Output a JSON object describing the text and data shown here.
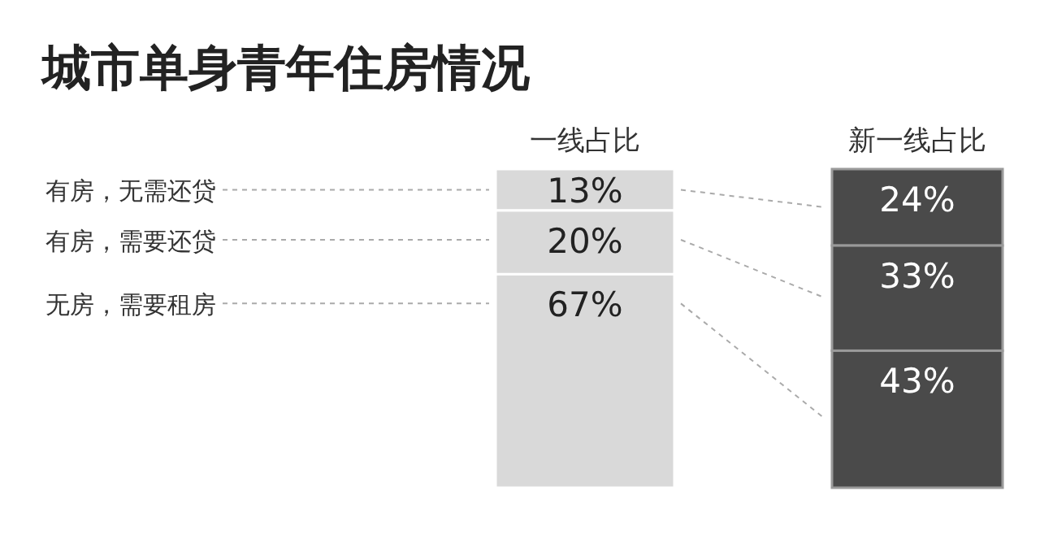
{
  "chart_data": {
    "type": "bar",
    "stacked": true,
    "title": "城市单身青年住房情况",
    "categories": [
      "一线占比",
      "新一线占比"
    ],
    "series": [
      {
        "name": "有房，无需还贷",
        "colors": [
          "#d9d9d9",
          "#4a4a4a"
        ],
        "values": [
          13,
          24
        ],
        "value_labels": [
          "13%",
          "24%"
        ]
      },
      {
        "name": "有房，需要还贷",
        "colors": [
          "#d9d9d9",
          "#4a4a4a"
        ],
        "values": [
          20,
          33
        ],
        "value_labels": [
          "20%",
          "33%"
        ]
      },
      {
        "name": "无房，需要租房",
        "colors": [
          "#d9d9d9",
          "#4a4a4a"
        ],
        "values": [
          67,
          43
        ],
        "value_labels": [
          "67%",
          "43%"
        ]
      }
    ]
  }
}
